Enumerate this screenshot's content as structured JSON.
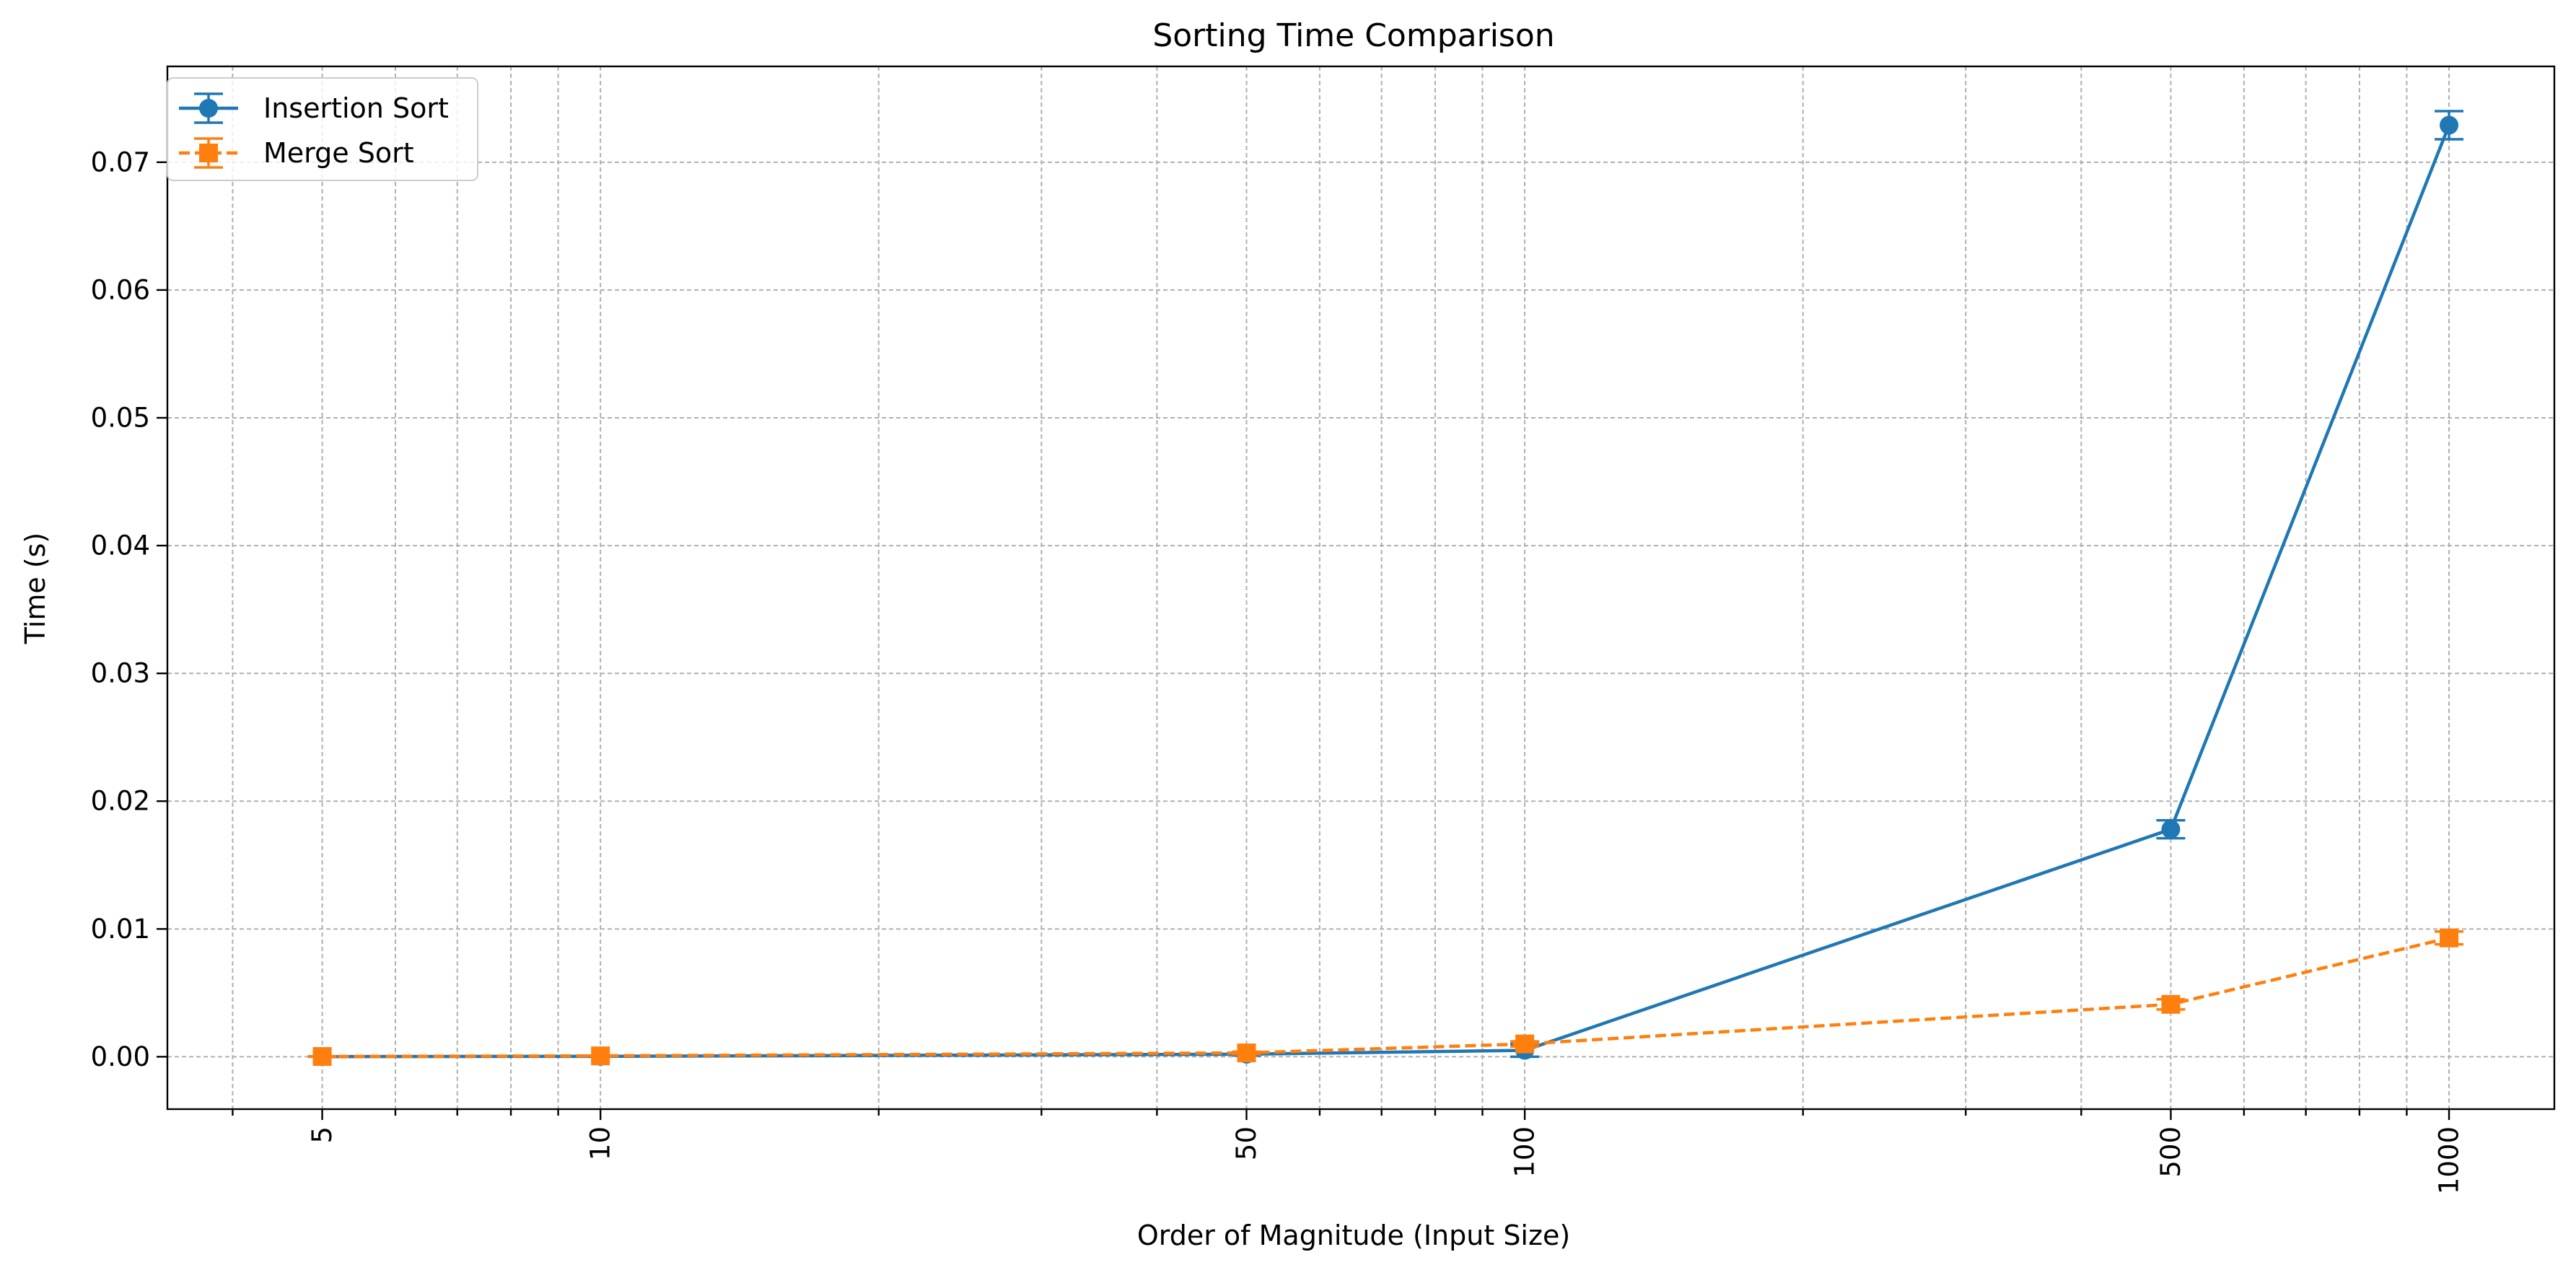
{
  "chart_data": {
    "type": "line",
    "title": "Sorting Time Comparison",
    "xlabel": "Order of Magnitude (Input Size)",
    "ylabel": "Time (s)",
    "x_scale": "log",
    "x": [
      5,
      10,
      50,
      100,
      500,
      1000
    ],
    "x_tick_labels": [
      "5",
      "10",
      "50",
      "100",
      "500",
      "1000"
    ],
    "xlim": [
      3.4,
      1300
    ],
    "ylim": [
      -0.0041,
      0.0775
    ],
    "y_ticks": [
      0.0,
      0.01,
      0.02,
      0.03,
      0.04,
      0.05,
      0.06,
      0.07
    ],
    "y_tick_labels": [
      "0.00",
      "0.01",
      "0.02",
      "0.03",
      "0.04",
      "0.05",
      "0.06",
      "0.07"
    ],
    "grid": true,
    "legend_position": "top-left",
    "series": [
      {
        "name": "Insertion Sort",
        "color": "#1f77b4",
        "line_style": "solid",
        "marker": "circle",
        "values": [
          1e-05,
          3e-05,
          0.0002,
          0.0005,
          0.0178,
          0.0729
        ],
        "errors": [
          1e-05,
          1e-05,
          0.0001,
          0.0005,
          0.0007,
          0.0011
        ]
      },
      {
        "name": "Merge Sort",
        "color": "#ff7f0e",
        "line_style": "dashed",
        "marker": "square",
        "values": [
          2e-05,
          7e-05,
          0.0003,
          0.001,
          0.0041,
          0.0093
        ],
        "errors": [
          1e-05,
          2e-05,
          0.0001,
          0.0002,
          0.0004,
          0.0005
        ]
      }
    ]
  }
}
